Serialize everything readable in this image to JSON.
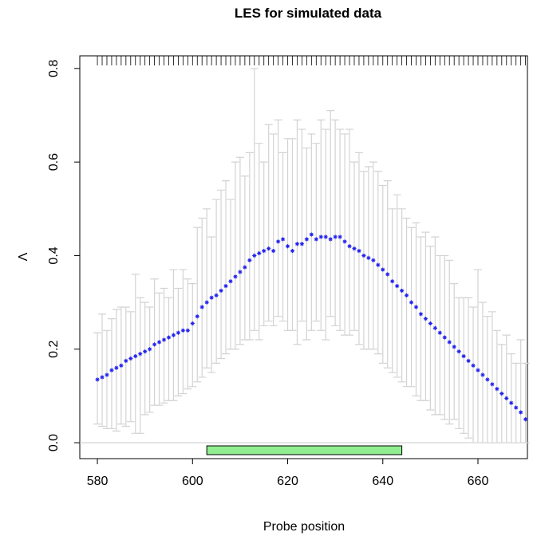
{
  "chart_data": {
    "type": "errorbar-scatter",
    "title": "LES for simulated data",
    "x_label": "Probe position",
    "y_label": "Λ",
    "xlim": [
      576.3,
      670.4
    ],
    "ylim": [
      -0.034,
      0.827
    ],
    "xticks": [
      580,
      600,
      620,
      640,
      660
    ],
    "yticks": [
      {
        "value": 0,
        "label": "0.0"
      },
      {
        "value": 0.2,
        "label": "0.2"
      },
      {
        "value": 0.4,
        "label": "0.4"
      },
      {
        "value": 0.6,
        "label": "0.6"
      },
      {
        "value": 0.8,
        "label": "0.8"
      }
    ],
    "point_color": "#2222ee",
    "error_color": "#d3d3d3",
    "rug": true,
    "x": [
      580,
      581,
      582,
      583,
      584,
      585,
      586,
      587,
      588,
      589,
      590,
      591,
      592,
      593,
      594,
      595,
      596,
      597,
      598,
      599,
      600,
      601,
      602,
      603,
      604,
      605,
      606,
      607,
      608,
      609,
      610,
      611,
      612,
      613,
      614,
      615,
      616,
      617,
      618,
      619,
      620,
      621,
      622,
      623,
      624,
      625,
      626,
      627,
      628,
      629,
      630,
      631,
      632,
      633,
      634,
      635,
      636,
      637,
      638,
      639,
      640,
      641,
      642,
      643,
      644,
      645,
      646,
      647,
      648,
      649,
      650,
      651,
      652,
      653,
      654,
      655,
      656,
      657,
      658,
      659,
      660,
      661,
      662,
      663,
      664,
      665,
      666,
      667,
      668,
      669,
      670
    ],
    "values": [
      0.135,
      0.14,
      0.145,
      0.155,
      0.16,
      0.165,
      0.175,
      0.18,
      0.185,
      0.19,
      0.195,
      0.2,
      0.21,
      0.215,
      0.22,
      0.225,
      0.23,
      0.235,
      0.24,
      0.24,
      0.255,
      0.27,
      0.29,
      0.3,
      0.31,
      0.315,
      0.325,
      0.335,
      0.345,
      0.355,
      0.365,
      0.375,
      0.39,
      0.4,
      0.405,
      0.41,
      0.415,
      0.41,
      0.43,
      0.435,
      0.42,
      0.41,
      0.425,
      0.425,
      0.435,
      0.445,
      0.435,
      0.44,
      0.44,
      0.435,
      0.44,
      0.44,
      0.43,
      0.42,
      0.415,
      0.41,
      0.4,
      0.395,
      0.39,
      0.38,
      0.37,
      0.36,
      0.345,
      0.335,
      0.325,
      0.315,
      0.3,
      0.29,
      0.275,
      0.265,
      0.255,
      0.245,
      0.235,
      0.225,
      0.215,
      0.205,
      0.195,
      0.185,
      0.175,
      0.165,
      0.155,
      0.145,
      0.135,
      0.125,
      0.115,
      0.105,
      0.095,
      0.085,
      0.075,
      0.065,
      0.05
    ],
    "upper": [
      0.235,
      0.275,
      0.24,
      0.265,
      0.285,
      0.29,
      0.29,
      0.28,
      0.36,
      0.31,
      0.3,
      0.29,
      0.35,
      0.32,
      0.33,
      0.31,
      0.37,
      0.33,
      0.37,
      0.35,
      0.34,
      0.46,
      0.48,
      0.5,
      0.44,
      0.52,
      0.54,
      0.56,
      0.52,
      0.6,
      0.61,
      0.57,
      0.62,
      0.8,
      0.64,
      0.6,
      0.68,
      0.66,
      0.69,
      0.62,
      0.65,
      0.65,
      0.69,
      0.67,
      0.63,
      0.66,
      0.64,
      0.69,
      0.67,
      0.71,
      0.69,
      0.67,
      0.66,
      0.67,
      0.6,
      0.62,
      0.58,
      0.59,
      0.6,
      0.58,
      0.55,
      0.56,
      0.5,
      0.53,
      0.5,
      0.48,
      0.46,
      0.47,
      0.44,
      0.45,
      0.42,
      0.44,
      0.4,
      0.4,
      0.39,
      0.34,
      0.31,
      0.31,
      0.31,
      0.29,
      0.37,
      0.3,
      0.27,
      0.28,
      0.24,
      0.21,
      0.23,
      0.19,
      0.17,
      0.22,
      0.17
    ],
    "lower": [
      0.04,
      0.035,
      0.03,
      0.03,
      0.025,
      0.04,
      0.035,
      0.045,
      0.02,
      0.02,
      0.06,
      0.065,
      0.08,
      0.08,
      0.085,
      0.09,
      0.09,
      0.1,
      0.105,
      0.115,
      0.12,
      0.13,
      0.14,
      0.16,
      0.15,
      0.17,
      0.18,
      0.19,
      0.2,
      0.2,
      0.21,
      0.22,
      0.22,
      0.24,
      0.22,
      0.25,
      0.26,
      0.25,
      0.27,
      0.26,
      0.24,
      0.24,
      0.21,
      0.26,
      0.22,
      0.24,
      0.26,
      0.24,
      0.22,
      0.27,
      0.25,
      0.24,
      0.23,
      0.23,
      0.24,
      0.21,
      0.2,
      0.2,
      0.2,
      0.19,
      0.17,
      0.16,
      0.15,
      0.14,
      0.13,
      0.12,
      0.12,
      0.1,
      0.09,
      0.09,
      0.07,
      0.06,
      0.06,
      0.05,
      0.04,
      0.05,
      0.03,
      0.02,
      0.01,
      0,
      0,
      0,
      0,
      0,
      0,
      0,
      0,
      0,
      0,
      0,
      0
    ],
    "region": {
      "start": 603,
      "end": 644,
      "color": "#90ee90"
    }
  }
}
